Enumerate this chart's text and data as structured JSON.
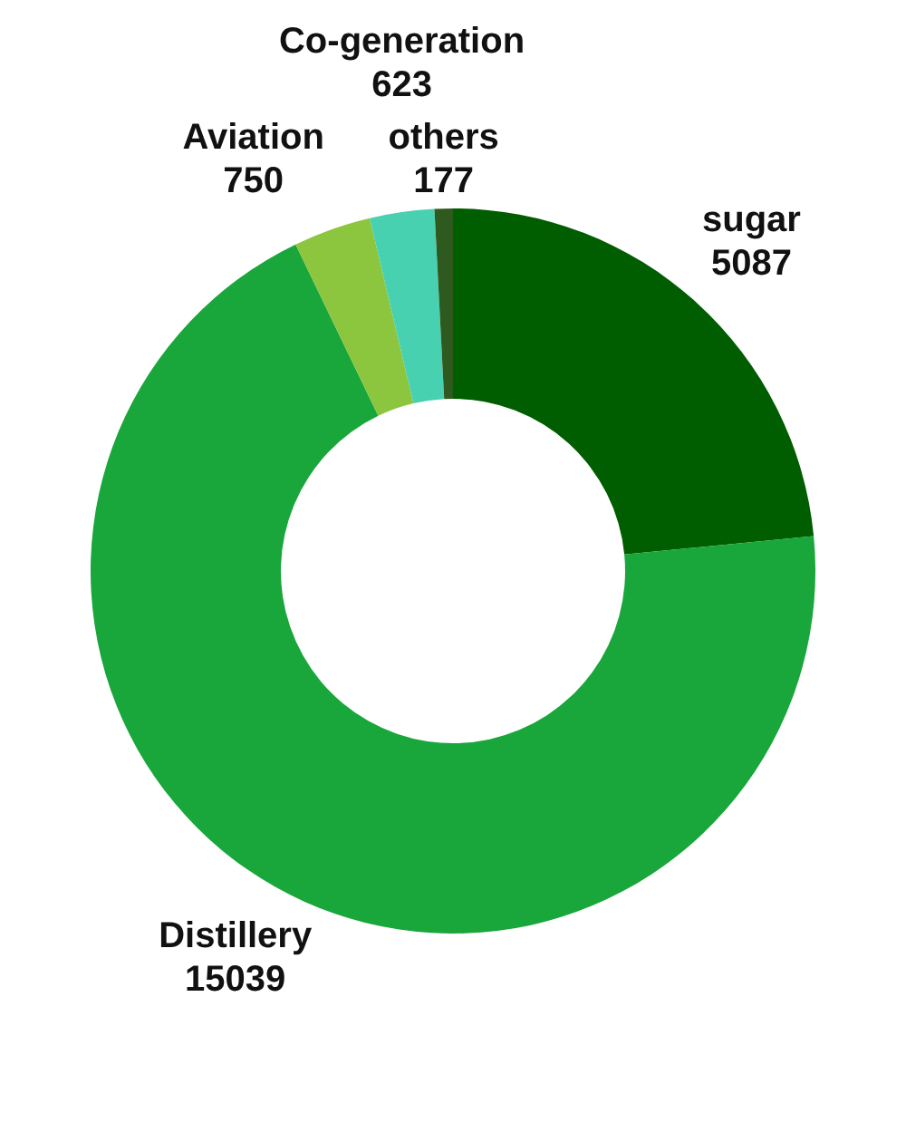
{
  "chart_data": {
    "type": "donut",
    "categories": [
      "sugar",
      "Distillery",
      "Aviation",
      "Co-generation",
      "others"
    ],
    "values": [
      5087,
      15039,
      750,
      623,
      177
    ],
    "colors": [
      "#005e00",
      "#19a63a",
      "#8cc63f",
      "#48d1b0",
      "#2f5a1f"
    ],
    "data_labels": true
  }
}
